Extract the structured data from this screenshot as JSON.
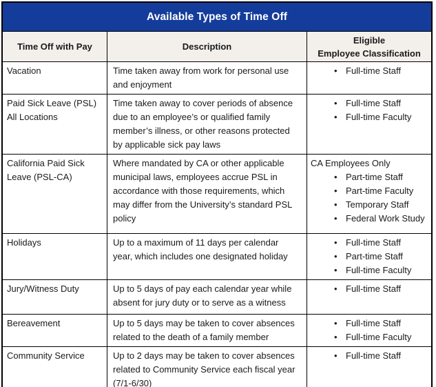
{
  "colors": {
    "title_bar": "#143c9b",
    "title_text": "#ffffff",
    "header_bg": "#f3f0ec",
    "border": "#000000",
    "body_text": "#1a1a1a"
  },
  "table": {
    "title": "Available Types of Time Off",
    "columns": [
      "Time Off with Pay",
      "Description",
      "Eligible Employee Classification"
    ],
    "bullet_glyph": "•",
    "rows": [
      {
        "type": "Vacation",
        "description": "Time taken away from work for personal use and enjoyment",
        "eligibility": {
          "intro": null,
          "bullets": [
            "Full-time Staff"
          ]
        }
      },
      {
        "type": "Paid Sick Leave (PSL) All Locations",
        "description": "Time taken away to cover periods of absence due to an employee’s or qualified family member’s illness, or other reasons protected by applicable sick pay laws",
        "eligibility": {
          "intro": null,
          "bullets": [
            "Full-time Staff",
            "Full-time Faculty"
          ]
        }
      },
      {
        "type": "California Paid Sick Leave (PSL-CA)",
        "description": "Where mandated by CA or other applicable municipal laws, employees accrue PSL in accordance with those requirements, which may differ from the University’s standard PSL policy",
        "eligibility": {
          "intro": "CA Employees Only",
          "bullets": [
            "Part-time Staff",
            "Part-time Faculty",
            "Temporary Staff",
            "Federal Work Study"
          ]
        }
      },
      {
        "type": "Holidays",
        "description": "Up to a maximum of 11 days per calendar year, which includes one designated holiday",
        "eligibility": {
          "intro": null,
          "bullets": [
            "Full-time Staff",
            "Part-time Staff",
            "Full-time Faculty"
          ]
        }
      },
      {
        "type": "Jury/Witness Duty",
        "description": "Up to 5 days of pay each calendar year while absent for jury duty or to serve as a witness",
        "eligibility": {
          "intro": null,
          "bullets": [
            "Full-time Staff"
          ]
        }
      },
      {
        "type": "Bereavement",
        "description": "Up to 5 days may be taken to cover absences related to the death of a family member",
        "eligibility": {
          "intro": null,
          "bullets": [
            "Full-time Staff",
            "Full-time Faculty"
          ]
        }
      },
      {
        "type": "Community Service",
        "description": "Up to 2 days may be taken to cover absences related to Community Service each fiscal year (7/1-6/30)",
        "eligibility": {
          "intro": null,
          "bullets": [
            "Full-time Staff"
          ]
        }
      }
    ]
  }
}
